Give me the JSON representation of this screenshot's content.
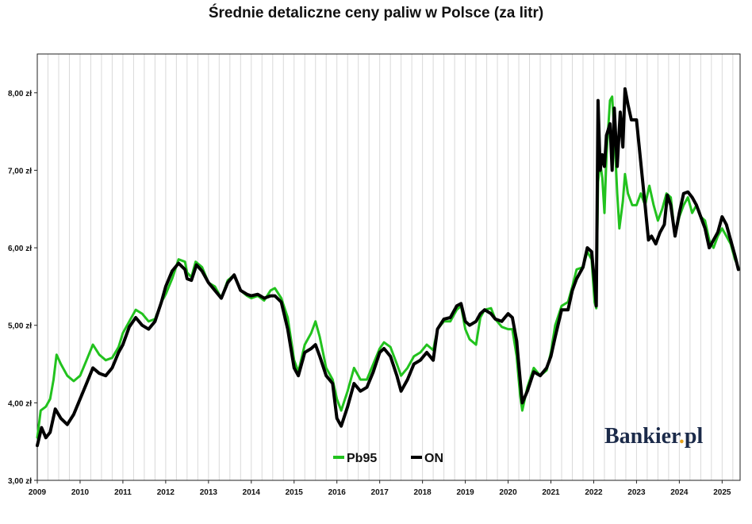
{
  "title": "Średnie detaliczne ceny paliw w Polsce (za litr)",
  "brand": {
    "name_main": "Bankier",
    "name_dot": ".",
    "name_tld": "pl"
  },
  "colors": {
    "pb95": "#22c21e",
    "on": "#000000",
    "grid": "#d9d9d9",
    "axis": "#222222"
  },
  "chart_data": {
    "type": "line",
    "title": "Średnie detaliczne ceny paliw w Polsce (za litr)",
    "xlabel": "",
    "ylabel": "",
    "xlim": [
      2009.0,
      2025.42
    ],
    "ylim": [
      3.0,
      8.5
    ],
    "y_ticks": [
      {
        "value": 3.0,
        "label": "3,00 zł"
      },
      {
        "value": 4.0,
        "label": "4,00 zł"
      },
      {
        "value": 5.0,
        "label": "5,00 zł"
      },
      {
        "value": 6.0,
        "label": "6,00 zł"
      },
      {
        "value": 7.0,
        "label": "7,00 zł"
      },
      {
        "value": 8.0,
        "label": "8,00 zł"
      }
    ],
    "x_ticks": [
      {
        "value": 2009,
        "label": "2009"
      },
      {
        "value": 2010,
        "label": "2010"
      },
      {
        "value": 2011,
        "label": "2011"
      },
      {
        "value": 2012,
        "label": "2012"
      },
      {
        "value": 2013,
        "label": "2013"
      },
      {
        "value": 2014,
        "label": "2014"
      },
      {
        "value": 2015,
        "label": "2015"
      },
      {
        "value": 2016,
        "label": "2016"
      },
      {
        "value": 2017,
        "label": "2017"
      },
      {
        "value": 2018,
        "label": "2018"
      },
      {
        "value": 2019,
        "label": "2019"
      },
      {
        "value": 2020,
        "label": "2020"
      },
      {
        "value": 2021,
        "label": "2021"
      },
      {
        "value": 2022,
        "label": "2022"
      },
      {
        "value": 2023,
        "label": "2023"
      },
      {
        "value": 2024,
        "label": "2024"
      },
      {
        "value": 2025,
        "label": "2025"
      }
    ],
    "grid": "vertical",
    "legend_position": "bottom-center",
    "series": [
      {
        "name": "Pb95",
        "color": "#22c21e",
        "points": [
          [
            2009.0,
            3.55
          ],
          [
            2009.08,
            3.9
          ],
          [
            2009.2,
            3.95
          ],
          [
            2009.3,
            4.05
          ],
          [
            2009.38,
            4.3
          ],
          [
            2009.45,
            4.62
          ],
          [
            2009.55,
            4.5
          ],
          [
            2009.7,
            4.35
          ],
          [
            2009.85,
            4.28
          ],
          [
            2010.0,
            4.35
          ],
          [
            2010.15,
            4.55
          ],
          [
            2010.3,
            4.75
          ],
          [
            2010.45,
            4.62
          ],
          [
            2010.6,
            4.55
          ],
          [
            2010.75,
            4.58
          ],
          [
            2010.9,
            4.72
          ],
          [
            2011.0,
            4.9
          ],
          [
            2011.15,
            5.05
          ],
          [
            2011.3,
            5.2
          ],
          [
            2011.45,
            5.15
          ],
          [
            2011.6,
            5.05
          ],
          [
            2011.75,
            5.08
          ],
          [
            2011.9,
            5.3
          ],
          [
            2012.0,
            5.4
          ],
          [
            2012.15,
            5.6
          ],
          [
            2012.3,
            5.85
          ],
          [
            2012.45,
            5.82
          ],
          [
            2012.5,
            5.68
          ],
          [
            2012.6,
            5.62
          ],
          [
            2012.7,
            5.82
          ],
          [
            2012.85,
            5.75
          ],
          [
            2013.0,
            5.55
          ],
          [
            2013.15,
            5.5
          ],
          [
            2013.3,
            5.35
          ],
          [
            2013.45,
            5.58
          ],
          [
            2013.6,
            5.65
          ],
          [
            2013.75,
            5.45
          ],
          [
            2013.9,
            5.38
          ],
          [
            2014.0,
            5.35
          ],
          [
            2014.15,
            5.38
          ],
          [
            2014.3,
            5.32
          ],
          [
            2014.45,
            5.45
          ],
          [
            2014.55,
            5.48
          ],
          [
            2014.7,
            5.35
          ],
          [
            2014.85,
            5.1
          ],
          [
            2015.0,
            4.55
          ],
          [
            2015.1,
            4.4
          ],
          [
            2015.25,
            4.75
          ],
          [
            2015.4,
            4.9
          ],
          [
            2015.5,
            5.05
          ],
          [
            2015.6,
            4.85
          ],
          [
            2015.75,
            4.45
          ],
          [
            2015.9,
            4.3
          ],
          [
            2016.0,
            4.05
          ],
          [
            2016.1,
            3.9
          ],
          [
            2016.25,
            4.15
          ],
          [
            2016.4,
            4.45
          ],
          [
            2016.55,
            4.3
          ],
          [
            2016.7,
            4.3
          ],
          [
            2016.85,
            4.5
          ],
          [
            2017.0,
            4.7
          ],
          [
            2017.1,
            4.78
          ],
          [
            2017.25,
            4.72
          ],
          [
            2017.4,
            4.5
          ],
          [
            2017.5,
            4.35
          ],
          [
            2017.65,
            4.45
          ],
          [
            2017.8,
            4.6
          ],
          [
            2017.95,
            4.65
          ],
          [
            2018.1,
            4.75
          ],
          [
            2018.25,
            4.68
          ],
          [
            2018.35,
            4.95
          ],
          [
            2018.5,
            5.05
          ],
          [
            2018.65,
            5.05
          ],
          [
            2018.8,
            5.2
          ],
          [
            2018.9,
            5.25
          ],
          [
            2019.0,
            4.95
          ],
          [
            2019.1,
            4.82
          ],
          [
            2019.25,
            4.75
          ],
          [
            2019.35,
            5.1
          ],
          [
            2019.45,
            5.2
          ],
          [
            2019.6,
            5.22
          ],
          [
            2019.7,
            5.08
          ],
          [
            2019.85,
            4.98
          ],
          [
            2020.0,
            4.95
          ],
          [
            2020.1,
            4.95
          ],
          [
            2020.2,
            4.6
          ],
          [
            2020.28,
            4.1
          ],
          [
            2020.33,
            3.9
          ],
          [
            2020.45,
            4.2
          ],
          [
            2020.6,
            4.45
          ],
          [
            2020.75,
            4.35
          ],
          [
            2020.9,
            4.42
          ],
          [
            2021.0,
            4.65
          ],
          [
            2021.1,
            5.0
          ],
          [
            2021.25,
            5.25
          ],
          [
            2021.4,
            5.3
          ],
          [
            2021.5,
            5.5
          ],
          [
            2021.6,
            5.72
          ],
          [
            2021.75,
            5.75
          ],
          [
            2021.85,
            5.95
          ],
          [
            2021.95,
            5.85
          ],
          [
            2022.02,
            5.3
          ],
          [
            2022.06,
            5.22
          ],
          [
            2022.1,
            6.85
          ],
          [
            2022.15,
            7.1
          ],
          [
            2022.2,
            6.9
          ],
          [
            2022.25,
            6.45
          ],
          [
            2022.3,
            7.2
          ],
          [
            2022.38,
            7.9
          ],
          [
            2022.43,
            7.95
          ],
          [
            2022.48,
            7.5
          ],
          [
            2022.55,
            6.7
          ],
          [
            2022.6,
            6.25
          ],
          [
            2022.68,
            6.6
          ],
          [
            2022.73,
            6.95
          ],
          [
            2022.8,
            6.7
          ],
          [
            2022.9,
            6.55
          ],
          [
            2023.0,
            6.55
          ],
          [
            2023.1,
            6.7
          ],
          [
            2023.2,
            6.55
          ],
          [
            2023.3,
            6.8
          ],
          [
            2023.4,
            6.55
          ],
          [
            2023.5,
            6.35
          ],
          [
            2023.6,
            6.5
          ],
          [
            2023.7,
            6.7
          ],
          [
            2023.8,
            6.65
          ],
          [
            2023.9,
            6.15
          ],
          [
            2024.0,
            6.4
          ],
          [
            2024.1,
            6.55
          ],
          [
            2024.2,
            6.65
          ],
          [
            2024.3,
            6.45
          ],
          [
            2024.4,
            6.55
          ],
          [
            2024.5,
            6.4
          ],
          [
            2024.6,
            6.35
          ],
          [
            2024.7,
            6.1
          ],
          [
            2024.8,
            6.0
          ],
          [
            2024.9,
            6.15
          ],
          [
            2025.0,
            6.25
          ],
          [
            2025.1,
            6.15
          ],
          [
            2025.2,
            6.05
          ],
          [
            2025.3,
            5.85
          ],
          [
            2025.38,
            5.75
          ]
        ]
      },
      {
        "name": "ON",
        "color": "#000000",
        "points": [
          [
            2009.0,
            3.45
          ],
          [
            2009.1,
            3.68
          ],
          [
            2009.2,
            3.55
          ],
          [
            2009.3,
            3.62
          ],
          [
            2009.42,
            3.92
          ],
          [
            2009.55,
            3.8
          ],
          [
            2009.7,
            3.72
          ],
          [
            2009.85,
            3.85
          ],
          [
            2010.0,
            4.05
          ],
          [
            2010.15,
            4.25
          ],
          [
            2010.3,
            4.45
          ],
          [
            2010.45,
            4.38
          ],
          [
            2010.6,
            4.35
          ],
          [
            2010.75,
            4.45
          ],
          [
            2010.9,
            4.65
          ],
          [
            2011.0,
            4.75
          ],
          [
            2011.15,
            4.98
          ],
          [
            2011.3,
            5.1
          ],
          [
            2011.45,
            5.0
          ],
          [
            2011.6,
            4.95
          ],
          [
            2011.75,
            5.05
          ],
          [
            2011.9,
            5.3
          ],
          [
            2012.0,
            5.5
          ],
          [
            2012.15,
            5.7
          ],
          [
            2012.3,
            5.8
          ],
          [
            2012.45,
            5.72
          ],
          [
            2012.5,
            5.6
          ],
          [
            2012.6,
            5.58
          ],
          [
            2012.72,
            5.78
          ],
          [
            2012.85,
            5.7
          ],
          [
            2013.0,
            5.55
          ],
          [
            2013.15,
            5.45
          ],
          [
            2013.3,
            5.35
          ],
          [
            2013.45,
            5.55
          ],
          [
            2013.6,
            5.65
          ],
          [
            2013.75,
            5.45
          ],
          [
            2013.9,
            5.4
          ],
          [
            2014.0,
            5.38
          ],
          [
            2014.15,
            5.4
          ],
          [
            2014.3,
            5.35
          ],
          [
            2014.45,
            5.38
          ],
          [
            2014.55,
            5.38
          ],
          [
            2014.7,
            5.3
          ],
          [
            2014.85,
            4.95
          ],
          [
            2015.0,
            4.45
          ],
          [
            2015.1,
            4.35
          ],
          [
            2015.25,
            4.65
          ],
          [
            2015.4,
            4.7
          ],
          [
            2015.5,
            4.75
          ],
          [
            2015.6,
            4.6
          ],
          [
            2015.75,
            4.35
          ],
          [
            2015.9,
            4.25
          ],
          [
            2016.0,
            3.8
          ],
          [
            2016.1,
            3.7
          ],
          [
            2016.25,
            3.95
          ],
          [
            2016.4,
            4.25
          ],
          [
            2016.55,
            4.15
          ],
          [
            2016.7,
            4.2
          ],
          [
            2016.85,
            4.4
          ],
          [
            2017.0,
            4.65
          ],
          [
            2017.1,
            4.7
          ],
          [
            2017.25,
            4.6
          ],
          [
            2017.4,
            4.35
          ],
          [
            2017.5,
            4.15
          ],
          [
            2017.65,
            4.3
          ],
          [
            2017.8,
            4.5
          ],
          [
            2017.95,
            4.55
          ],
          [
            2018.1,
            4.65
          ],
          [
            2018.25,
            4.55
          ],
          [
            2018.35,
            4.95
          ],
          [
            2018.5,
            5.08
          ],
          [
            2018.65,
            5.1
          ],
          [
            2018.8,
            5.25
          ],
          [
            2018.9,
            5.28
          ],
          [
            2019.0,
            5.05
          ],
          [
            2019.1,
            5.0
          ],
          [
            2019.25,
            5.05
          ],
          [
            2019.35,
            5.15
          ],
          [
            2019.45,
            5.2
          ],
          [
            2019.6,
            5.15
          ],
          [
            2019.7,
            5.08
          ],
          [
            2019.85,
            5.05
          ],
          [
            2020.0,
            5.15
          ],
          [
            2020.1,
            5.1
          ],
          [
            2020.2,
            4.8
          ],
          [
            2020.28,
            4.3
          ],
          [
            2020.33,
            4.0
          ],
          [
            2020.45,
            4.15
          ],
          [
            2020.6,
            4.4
          ],
          [
            2020.75,
            4.35
          ],
          [
            2020.9,
            4.45
          ],
          [
            2021.0,
            4.6
          ],
          [
            2021.1,
            4.85
          ],
          [
            2021.25,
            5.2
          ],
          [
            2021.4,
            5.2
          ],
          [
            2021.5,
            5.45
          ],
          [
            2021.6,
            5.6
          ],
          [
            2021.75,
            5.75
          ],
          [
            2021.85,
            6.0
          ],
          [
            2021.95,
            5.95
          ],
          [
            2022.02,
            5.55
          ],
          [
            2022.06,
            5.25
          ],
          [
            2022.1,
            7.9
          ],
          [
            2022.15,
            7.0
          ],
          [
            2022.2,
            7.2
          ],
          [
            2022.25,
            7.05
          ],
          [
            2022.3,
            7.45
          ],
          [
            2022.38,
            7.6
          ],
          [
            2022.43,
            7.0
          ],
          [
            2022.48,
            7.8
          ],
          [
            2022.55,
            7.05
          ],
          [
            2022.62,
            7.75
          ],
          [
            2022.68,
            7.3
          ],
          [
            2022.73,
            8.05
          ],
          [
            2022.8,
            7.85
          ],
          [
            2022.88,
            7.65
          ],
          [
            2023.0,
            7.65
          ],
          [
            2023.1,
            7.1
          ],
          [
            2023.2,
            6.55
          ],
          [
            2023.28,
            6.1
          ],
          [
            2023.35,
            6.15
          ],
          [
            2023.45,
            6.05
          ],
          [
            2023.55,
            6.2
          ],
          [
            2023.65,
            6.3
          ],
          [
            2023.72,
            6.68
          ],
          [
            2023.8,
            6.55
          ],
          [
            2023.9,
            6.15
          ],
          [
            2024.0,
            6.45
          ],
          [
            2024.1,
            6.7
          ],
          [
            2024.2,
            6.72
          ],
          [
            2024.3,
            6.65
          ],
          [
            2024.4,
            6.55
          ],
          [
            2024.5,
            6.4
          ],
          [
            2024.6,
            6.25
          ],
          [
            2024.7,
            6.0
          ],
          [
            2024.8,
            6.1
          ],
          [
            2024.9,
            6.2
          ],
          [
            2025.0,
            6.4
          ],
          [
            2025.1,
            6.3
          ],
          [
            2025.2,
            6.1
          ],
          [
            2025.3,
            5.9
          ],
          [
            2025.38,
            5.72
          ]
        ]
      }
    ]
  }
}
